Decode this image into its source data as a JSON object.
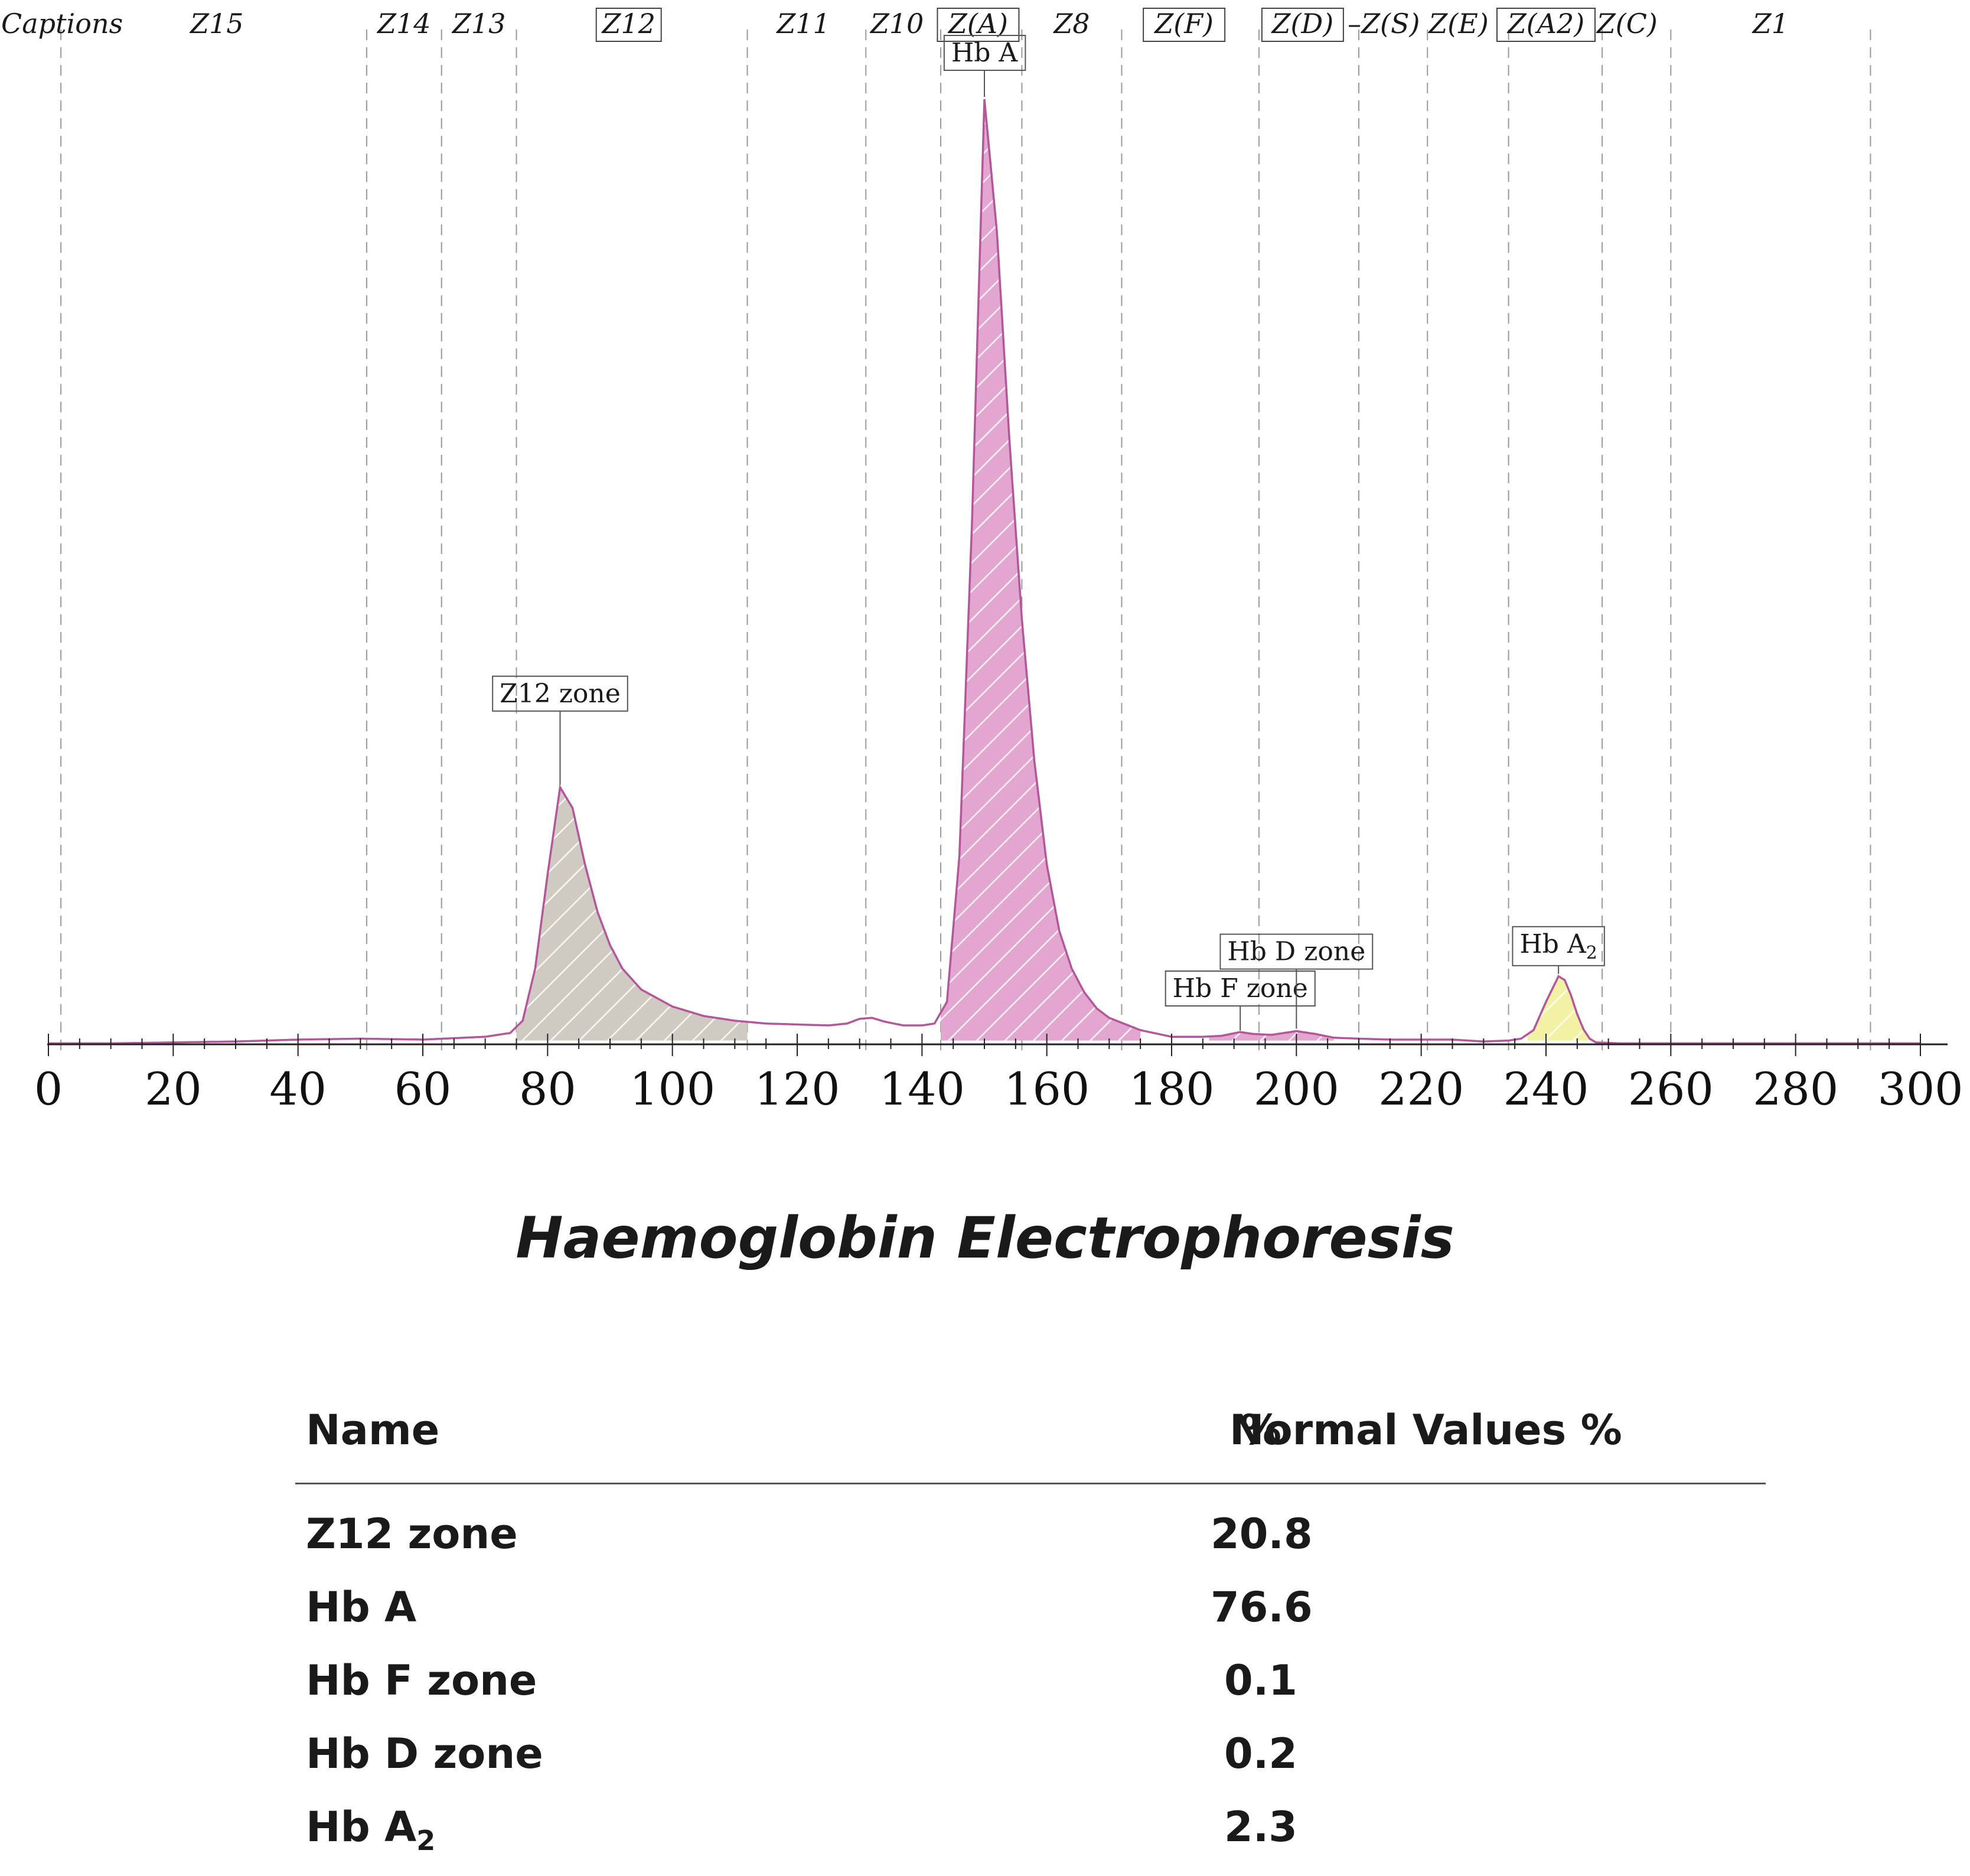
{
  "chart_data": {
    "type": "area",
    "xlim": [
      0,
      300
    ],
    "xticks": [
      "0",
      "20",
      "40",
      "60",
      "80",
      "100",
      "120",
      "140",
      "160",
      "180",
      "200",
      "220",
      "240",
      "260",
      "280",
      "300"
    ],
    "grid": "vertical zone boundaries",
    "captions_label": "Captions",
    "zones": [
      {
        "label": "Z15",
        "boxed": false,
        "center": 27
      },
      {
        "label": "Z14",
        "boxed": false,
        "center": 57
      },
      {
        "label": "Z13",
        "boxed": false,
        "center": 69
      },
      {
        "label": "Z12",
        "boxed": true,
        "center": 93
      },
      {
        "label": "Z11",
        "boxed": false,
        "center": 121
      },
      {
        "label": "Z10",
        "boxed": false,
        "center": 136
      },
      {
        "label": "Z(A)",
        "boxed": true,
        "center": 149
      },
      {
        "label": "Z8",
        "boxed": false,
        "center": 164
      },
      {
        "label": "Z(F)",
        "boxed": true,
        "center": 182
      },
      {
        "label": "Z(D)",
        "boxed": true,
        "center": 201
      },
      {
        "label": "–Z(S)",
        "boxed": false,
        "center": 214
      },
      {
        "label": "Z(E)",
        "boxed": false,
        "center": 226
      },
      {
        "label": "Z(A2)",
        "boxed": true,
        "center": 240
      },
      {
        "label": "Z(C)",
        "boxed": false,
        "center": 253
      },
      {
        "label": "Z1",
        "boxed": false,
        "center": 276
      }
    ],
    "zone_boundaries": [
      2,
      51,
      63,
      75,
      112,
      131,
      143,
      156,
      172,
      194,
      210,
      221,
      234,
      249,
      260,
      292
    ],
    "peaks": [
      {
        "label": "Z12 zone",
        "x": 82,
        "height": 0.272,
        "fill": "#cfcac2",
        "range": [
          75,
          112
        ]
      },
      {
        "label": "Hb A",
        "x": 150,
        "height": 1.0,
        "fill": "#e3a6d0",
        "range": [
          143,
          175
        ]
      },
      {
        "label": "Hb F zone",
        "x": 191,
        "height": 0.012,
        "fill": "#e3a6d0",
        "range": [
          186,
          196
        ]
      },
      {
        "label": "Hb D zone",
        "x": 200,
        "height": 0.014,
        "fill": "#e3a6d0",
        "range": [
          196,
          206
        ]
      },
      {
        "label_main": "Hb A",
        "label_sub": "2",
        "x": 242,
        "height": 0.072,
        "fill": "#f3f1a4",
        "range": [
          237,
          247
        ]
      }
    ],
    "curve": [
      [
        0,
        0.001
      ],
      [
        10,
        0.001
      ],
      [
        20,
        0.002
      ],
      [
        30,
        0.003
      ],
      [
        40,
        0.005
      ],
      [
        50,
        0.006
      ],
      [
        60,
        0.005
      ],
      [
        70,
        0.008
      ],
      [
        74,
        0.012
      ],
      [
        76,
        0.025
      ],
      [
        78,
        0.08
      ],
      [
        80,
        0.18
      ],
      [
        82,
        0.272
      ],
      [
        84,
        0.25
      ],
      [
        86,
        0.19
      ],
      [
        88,
        0.14
      ],
      [
        90,
        0.105
      ],
      [
        92,
        0.08
      ],
      [
        95,
        0.058
      ],
      [
        100,
        0.04
      ],
      [
        105,
        0.03
      ],
      [
        110,
        0.025
      ],
      [
        115,
        0.022
      ],
      [
        120,
        0.021
      ],
      [
        125,
        0.02
      ],
      [
        128,
        0.022
      ],
      [
        130,
        0.027
      ],
      [
        132,
        0.028
      ],
      [
        134,
        0.024
      ],
      [
        137,
        0.02
      ],
      [
        140,
        0.02
      ],
      [
        142,
        0.022
      ],
      [
        144,
        0.045
      ],
      [
        146,
        0.2
      ],
      [
        148,
        0.55
      ],
      [
        150,
        1.0
      ],
      [
        152,
        0.86
      ],
      [
        154,
        0.64
      ],
      [
        156,
        0.45
      ],
      [
        158,
        0.3
      ],
      [
        160,
        0.19
      ],
      [
        162,
        0.12
      ],
      [
        164,
        0.08
      ],
      [
        166,
        0.055
      ],
      [
        168,
        0.038
      ],
      [
        170,
        0.028
      ],
      [
        175,
        0.015
      ],
      [
        180,
        0.008
      ],
      [
        185,
        0.008
      ],
      [
        188,
        0.009
      ],
      [
        191,
        0.013
      ],
      [
        193,
        0.011
      ],
      [
        196,
        0.01
      ],
      [
        198,
        0.012
      ],
      [
        200,
        0.014
      ],
      [
        203,
        0.011
      ],
      [
        206,
        0.007
      ],
      [
        210,
        0.006
      ],
      [
        215,
        0.005
      ],
      [
        220,
        0.005
      ],
      [
        225,
        0.005
      ],
      [
        230,
        0.003
      ],
      [
        234,
        0.004
      ],
      [
        236,
        0.006
      ],
      [
        238,
        0.015
      ],
      [
        240,
        0.045
      ],
      [
        242,
        0.072
      ],
      [
        243,
        0.068
      ],
      [
        244,
        0.052
      ],
      [
        245,
        0.032
      ],
      [
        246,
        0.016
      ],
      [
        247,
        0.006
      ],
      [
        248,
        0.002
      ],
      [
        252,
        0.001
      ],
      [
        270,
        0.001
      ],
      [
        300,
        0.001
      ]
    ],
    "line_color": "#b3579a"
  },
  "chart_title": "Haemoglobin Electrophoresis",
  "table": {
    "headers": {
      "name": "Name",
      "percent": "%",
      "normal": "Normal Values %"
    },
    "rows": [
      {
        "name": "Z12 zone",
        "percent": "20.8"
      },
      {
        "name": "Hb A",
        "percent": "76.6"
      },
      {
        "name": "Hb F zone",
        "percent": "0.1"
      },
      {
        "name": "Hb D zone",
        "percent": "0.2"
      },
      {
        "name_main": "Hb A",
        "name_sub": "2",
        "percent": "2.3"
      }
    ]
  }
}
